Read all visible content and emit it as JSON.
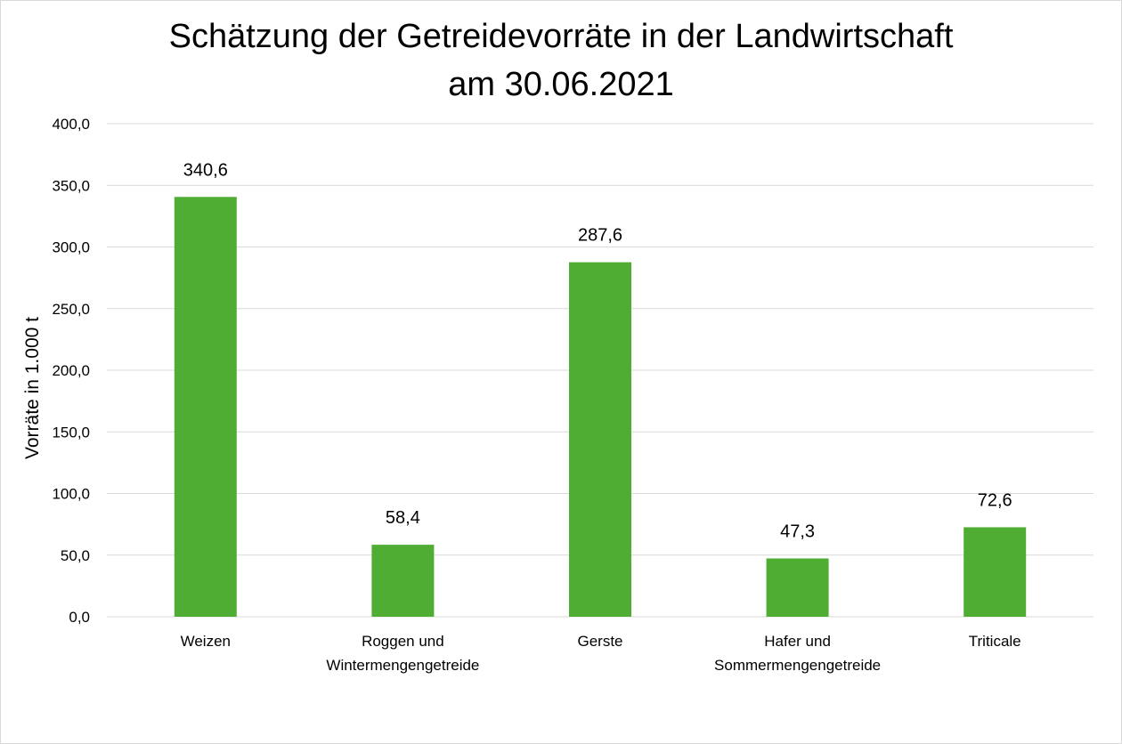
{
  "chart_data": {
    "type": "bar",
    "title": [
      "Schätzung der Getreidevorräte in der Landwirtschaft",
      "am 30.06.2021"
    ],
    "ylabel": "Vorräte in 1.000 t",
    "xlabel": "",
    "categories": [
      [
        "Weizen"
      ],
      [
        "Roggen und",
        "Wintermengengetreide"
      ],
      [
        "Gerste"
      ],
      [
        "Hafer und",
        "Sommermengengetreide"
      ],
      [
        "Triticale"
      ]
    ],
    "values": [
      340.6,
      58.4,
      287.6,
      47.3,
      72.6
    ],
    "value_labels": [
      "340,6",
      "58,4",
      "287,6",
      "47,3",
      "72,6"
    ],
    "ylim": [
      0,
      400
    ],
    "yticks": [
      0,
      50,
      100,
      150,
      200,
      250,
      300,
      350,
      400
    ],
    "ytick_labels": [
      "0,0",
      "50,0",
      "100,0",
      "150,0",
      "200,0",
      "250,0",
      "300,0",
      "350,0",
      "400,0"
    ],
    "grid": true,
    "legend": "none",
    "bar_color": "#4fad33",
    "grid_color": "#d9d9d9"
  }
}
